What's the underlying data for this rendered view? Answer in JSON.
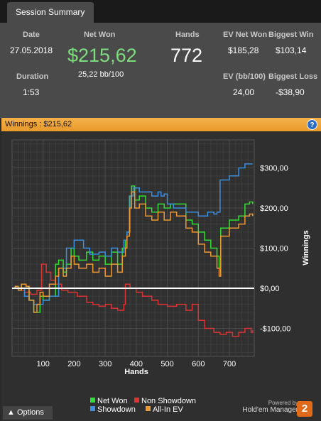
{
  "tab": {
    "label": "Session Summary"
  },
  "summary": {
    "date_label": "Date",
    "date_value": "27.05.2018",
    "duration_label": "Duration",
    "duration_value": "1:53",
    "netwon_label": "Net Won",
    "netwon_value": "$215,62",
    "netwon_bb": "25,22 bb/100",
    "hands_label": "Hands",
    "hands_value": "772",
    "ev_net_label": "EV Net Won",
    "ev_net_value": "$185,28",
    "ev_bb_label": "EV (bb/100)",
    "ev_bb_value": "24,00",
    "biggest_win_label": "Biggest Win",
    "biggest_win_value": "$103,14",
    "biggest_loss_label": "Biggest Loss",
    "biggest_loss_value": "-$38,90"
  },
  "banner": {
    "text": "Winnings : $215,62",
    "help": "?"
  },
  "options": {
    "label": "Options"
  },
  "legend": {
    "net_won": "Net Won",
    "non_showdown": "Non Showdown",
    "showdown": "Showdown",
    "allin_ev": "All-In EV"
  },
  "brand": {
    "powered_by": "Powered by",
    "name": "Hold'em Manager",
    "badge": "2"
  },
  "colors": {
    "net_won": "#33dd33",
    "non_showdown": "#dd3333",
    "showdown": "#3d8fe0",
    "allin_ev": "#ee9933",
    "banner": "#f0a840"
  },
  "chart_data": {
    "type": "line",
    "xlabel": "Hands",
    "ylabel": "Winnings",
    "xlim": [
      0,
      780
    ],
    "ylim": [
      -170,
      370
    ],
    "x_ticks": [
      100,
      200,
      300,
      400,
      500,
      600,
      700
    ],
    "y_ticks": [
      -100,
      0,
      100,
      200,
      300
    ],
    "y_tick_labels": [
      "-$100,00",
      "$0,00",
      "$100,00",
      "$200,00",
      "$300,00"
    ],
    "grid": true,
    "series": [
      {
        "name": "Net Won",
        "color": "#33dd33",
        "points": [
          [
            0,
            0
          ],
          [
            10,
            5
          ],
          [
            20,
            -5
          ],
          [
            30,
            10
          ],
          [
            45,
            5
          ],
          [
            55,
            -30
          ],
          [
            70,
            -60
          ],
          [
            80,
            -60
          ],
          [
            90,
            -20
          ],
          [
            100,
            -30
          ],
          [
            120,
            -20
          ],
          [
            140,
            60
          ],
          [
            150,
            70
          ],
          [
            165,
            40
          ],
          [
            175,
            60
          ],
          [
            190,
            100
          ],
          [
            200,
            80
          ],
          [
            215,
            70
          ],
          [
            240,
            90
          ],
          [
            260,
            70
          ],
          [
            280,
            80
          ],
          [
            300,
            60
          ],
          [
            320,
            90
          ],
          [
            340,
            60
          ],
          [
            355,
            100
          ],
          [
            365,
            120
          ],
          [
            370,
            140
          ],
          [
            378,
            230
          ],
          [
            385,
            255
          ],
          [
            395,
            220
          ],
          [
            410,
            230
          ],
          [
            430,
            200
          ],
          [
            450,
            190
          ],
          [
            470,
            210
          ],
          [
            490,
            200
          ],
          [
            510,
            210
          ],
          [
            530,
            210
          ],
          [
            560,
            170
          ],
          [
            580,
            160
          ],
          [
            600,
            140
          ],
          [
            620,
            120
          ],
          [
            640,
            100
          ],
          [
            660,
            80
          ],
          [
            667,
            50
          ],
          [
            672,
            150
          ],
          [
            700,
            170
          ],
          [
            730,
            180
          ],
          [
            750,
            210
          ],
          [
            765,
            215
          ],
          [
            775,
            210
          ]
        ]
      },
      {
        "name": "Non Showdown",
        "color": "#dd3333",
        "points": [
          [
            0,
            0
          ],
          [
            20,
            -5
          ],
          [
            40,
            -10
          ],
          [
            60,
            -15
          ],
          [
            80,
            -5
          ],
          [
            95,
            60
          ],
          [
            110,
            40
          ],
          [
            125,
            20
          ],
          [
            140,
            10
          ],
          [
            160,
            -5
          ],
          [
            180,
            -10
          ],
          [
            210,
            -20
          ],
          [
            240,
            -35
          ],
          [
            260,
            -40
          ],
          [
            280,
            -45
          ],
          [
            300,
            -40
          ],
          [
            320,
            -50
          ],
          [
            340,
            -55
          ],
          [
            360,
            -40
          ],
          [
            365,
            10
          ],
          [
            380,
            0
          ],
          [
            400,
            -10
          ],
          [
            420,
            -20
          ],
          [
            450,
            -30
          ],
          [
            470,
            -40
          ],
          [
            500,
            -45
          ],
          [
            530,
            -40
          ],
          [
            560,
            -55
          ],
          [
            580,
            -40
          ],
          [
            600,
            -80
          ],
          [
            620,
            -100
          ],
          [
            650,
            -110
          ],
          [
            670,
            -115
          ],
          [
            690,
            -110
          ],
          [
            710,
            -120
          ],
          [
            730,
            -110
          ],
          [
            750,
            -100
          ],
          [
            770,
            -110
          ],
          [
            775,
            -105
          ]
        ]
      },
      {
        "name": "Showdown",
        "color": "#3d8fe0",
        "points": [
          [
            0,
            0
          ],
          [
            20,
            0
          ],
          [
            40,
            -20
          ],
          [
            55,
            -30
          ],
          [
            70,
            -40
          ],
          [
            100,
            -30
          ],
          [
            120,
            -20
          ],
          [
            150,
            50
          ],
          [
            175,
            100
          ],
          [
            200,
            120
          ],
          [
            230,
            100
          ],
          [
            250,
            85
          ],
          [
            280,
            90
          ],
          [
            300,
            80
          ],
          [
            320,
            100
          ],
          [
            340,
            90
          ],
          [
            360,
            120
          ],
          [
            370,
            140
          ],
          [
            380,
            230
          ],
          [
            390,
            250
          ],
          [
            410,
            240
          ],
          [
            430,
            240
          ],
          [
            450,
            230
          ],
          [
            470,
            240
          ],
          [
            480,
            230
          ],
          [
            490,
            235
          ],
          [
            500,
            210
          ],
          [
            520,
            200
          ],
          [
            560,
            190
          ],
          [
            600,
            180
          ],
          [
            630,
            190
          ],
          [
            650,
            185
          ],
          [
            660,
            190
          ],
          [
            670,
            270
          ],
          [
            700,
            280
          ],
          [
            730,
            300
          ],
          [
            750,
            310
          ],
          [
            775,
            310
          ]
        ]
      },
      {
        "name": "All-In EV",
        "color": "#ee9933",
        "points": [
          [
            0,
            0
          ],
          [
            10,
            5
          ],
          [
            20,
            -5
          ],
          [
            30,
            10
          ],
          [
            45,
            5
          ],
          [
            55,
            -30
          ],
          [
            70,
            -60
          ],
          [
            80,
            -40
          ],
          [
            90,
            -10
          ],
          [
            100,
            -20
          ],
          [
            120,
            10
          ],
          [
            140,
            30
          ],
          [
            150,
            50
          ],
          [
            165,
            30
          ],
          [
            175,
            50
          ],
          [
            190,
            80
          ],
          [
            200,
            60
          ],
          [
            215,
            50
          ],
          [
            240,
            60
          ],
          [
            260,
            40
          ],
          [
            280,
            50
          ],
          [
            300,
            30
          ],
          [
            320,
            60
          ],
          [
            340,
            40
          ],
          [
            355,
            80
          ],
          [
            365,
            100
          ],
          [
            370,
            130
          ],
          [
            378,
            200
          ],
          [
            385,
            240
          ],
          [
            395,
            200
          ],
          [
            410,
            210
          ],
          [
            430,
            180
          ],
          [
            450,
            170
          ],
          [
            470,
            190
          ],
          [
            490,
            170
          ],
          [
            510,
            190
          ],
          [
            530,
            180
          ],
          [
            560,
            150
          ],
          [
            580,
            140
          ],
          [
            600,
            110
          ],
          [
            620,
            90
          ],
          [
            640,
            80
          ],
          [
            660,
            50
          ],
          [
            667,
            30
          ],
          [
            672,
            130
          ],
          [
            700,
            150
          ],
          [
            730,
            160
          ],
          [
            750,
            180
          ],
          [
            765,
            185
          ],
          [
            775,
            180
          ]
        ]
      }
    ]
  }
}
